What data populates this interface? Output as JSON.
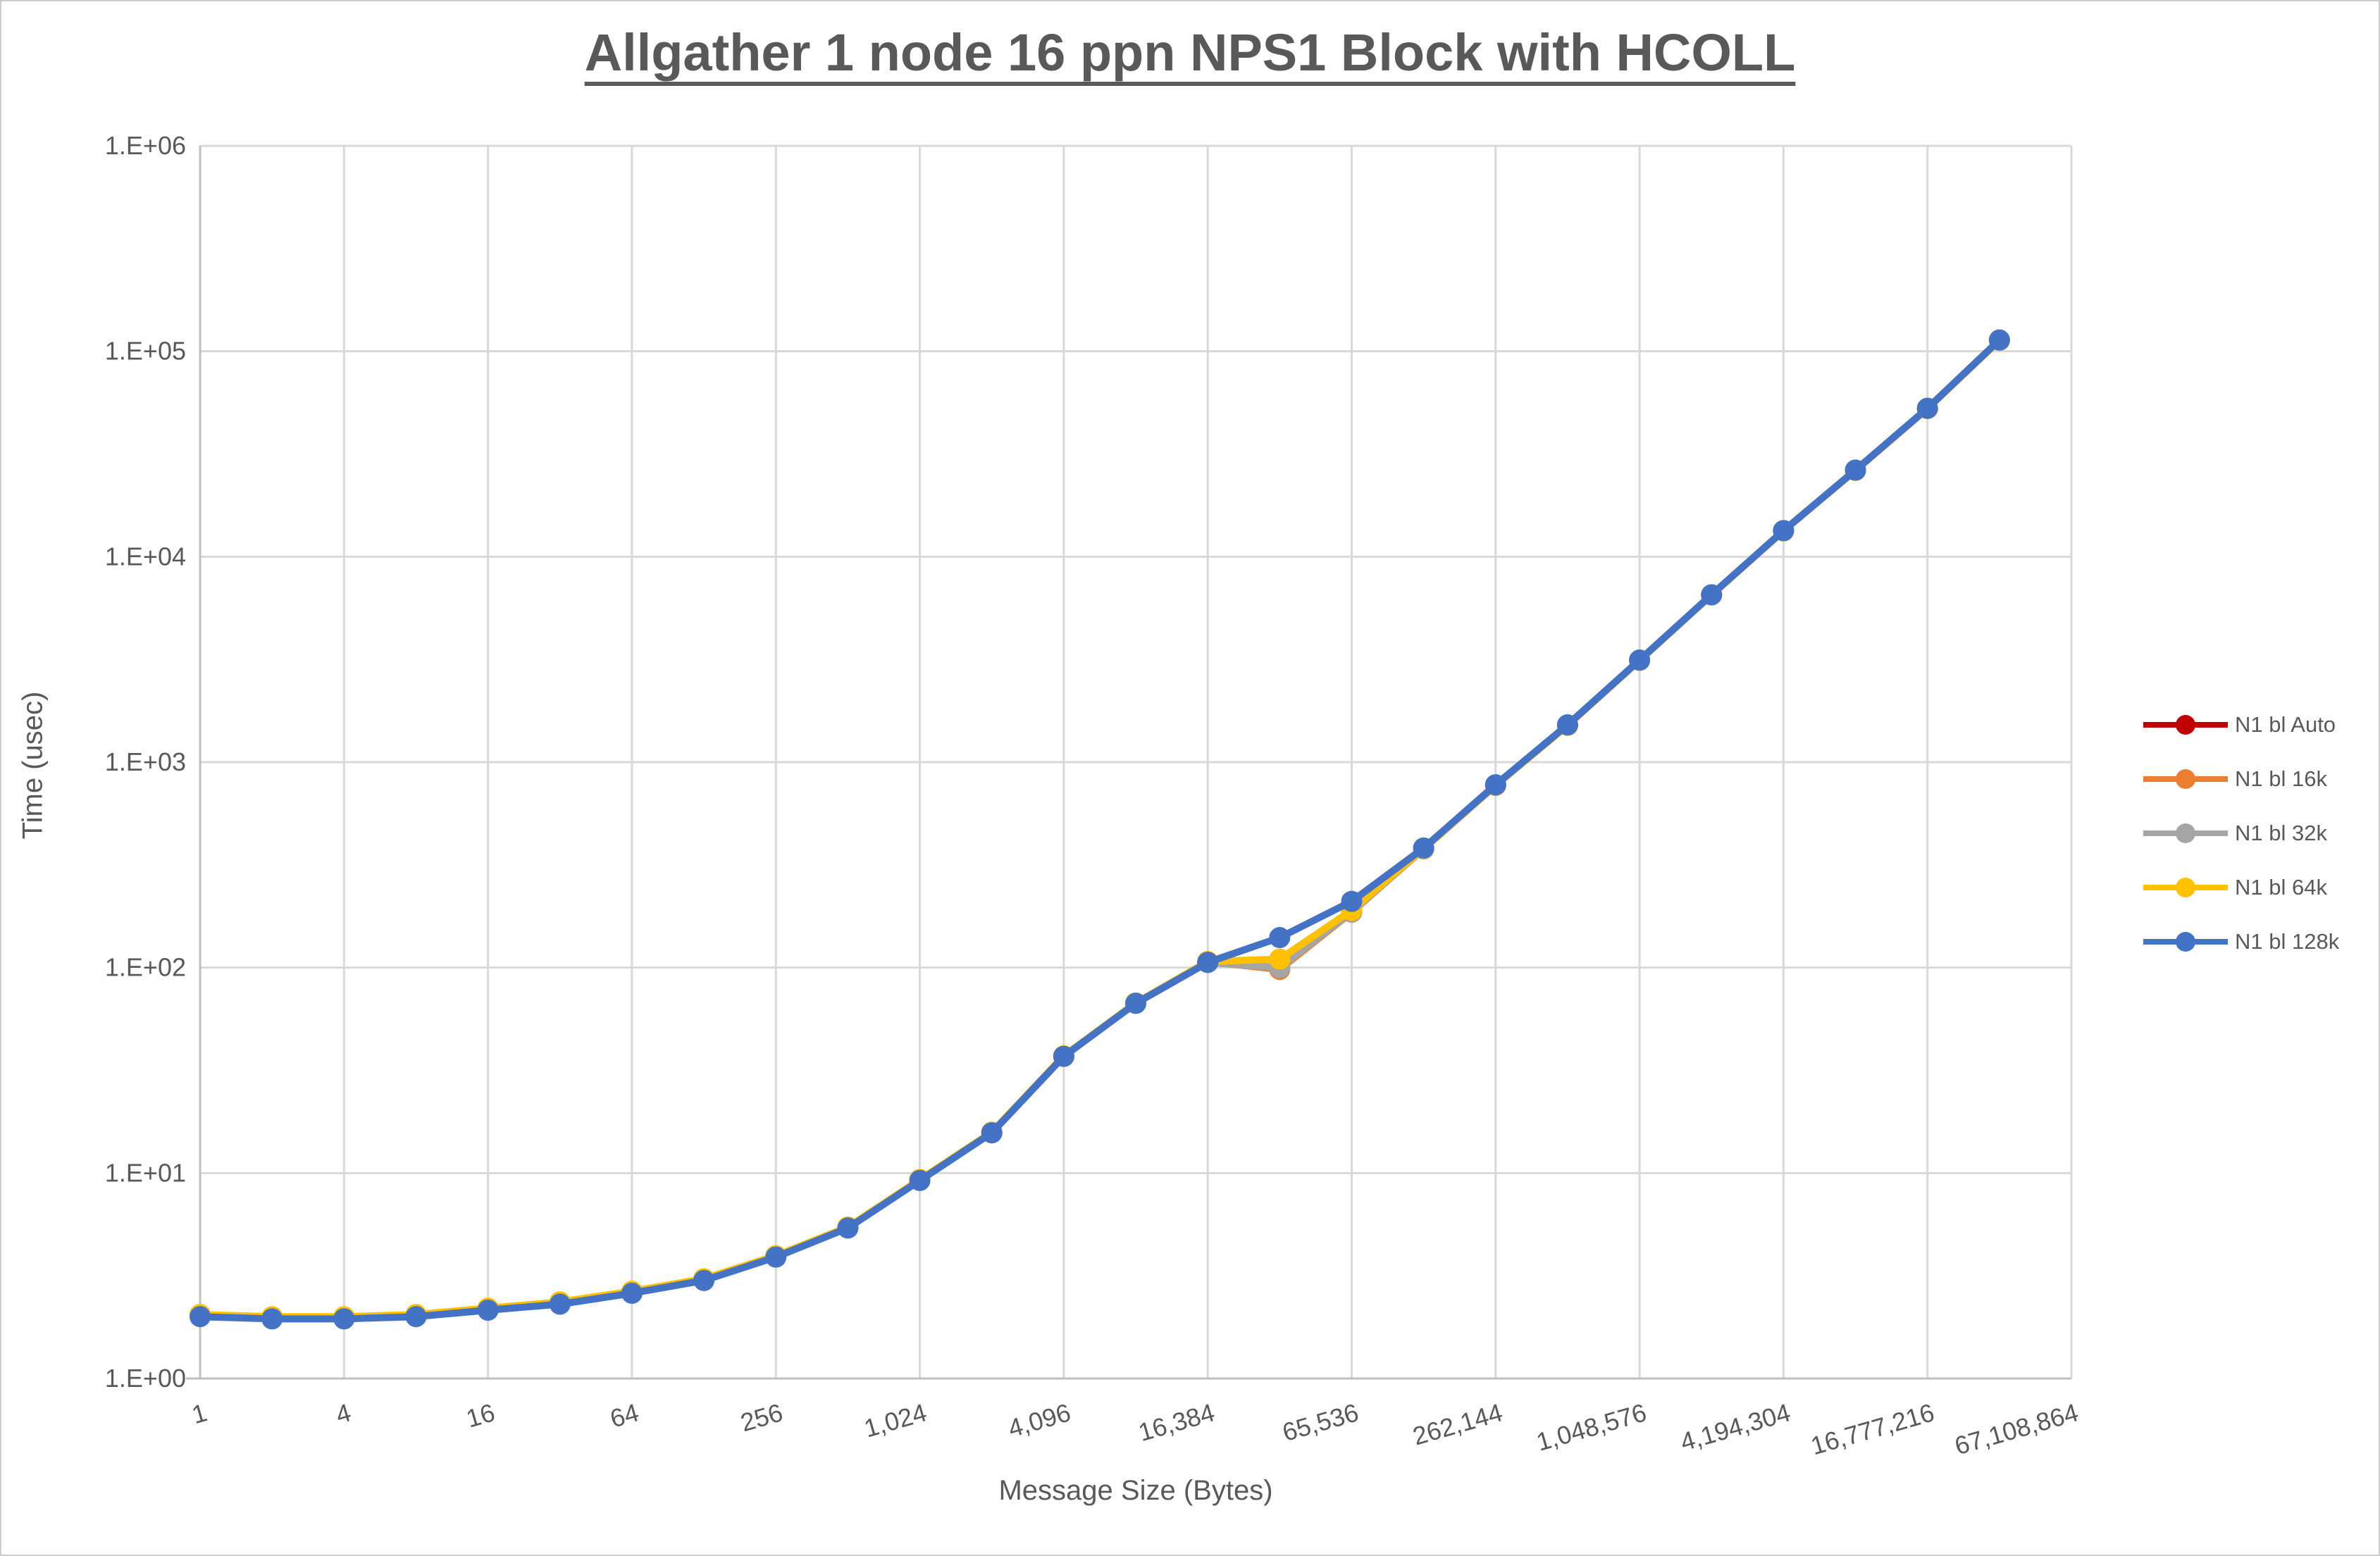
{
  "chart_data": {
    "type": "line",
    "title": "Allgather 1 node 16 ppn NPS1 Block with HCOLL",
    "xlabel": "Message Size (Bytes)",
    "ylabel": "Time (usec)",
    "x_scale": "log2-categories",
    "y_scale": "log10",
    "ylim": [
      1,
      1000000
    ],
    "grid": true,
    "legend_position": "right",
    "y_tick_labels": [
      "1.E+00",
      "1.E+01",
      "1.E+02",
      "1.E+03",
      "1.E+04",
      "1.E+05",
      "1.E+06"
    ],
    "x_tick_labels": [
      "1",
      "4",
      "16",
      "64",
      "256",
      "1,024",
      "4,096",
      "16,384",
      "65,536",
      "262,144",
      "1,048,576",
      "4,194,304",
      "16,777,216",
      "67,108,864"
    ],
    "x_axis_last_category": 67108864,
    "sizes": [
      1,
      2,
      4,
      8,
      16,
      32,
      64,
      128,
      256,
      512,
      1024,
      2048,
      4096,
      8192,
      16384,
      32768,
      65536,
      131072,
      262144,
      524288,
      1048576,
      2097152,
      4194304,
      8388608,
      16777216,
      33554432
    ],
    "series": [
      {
        "name": "N1 bl Auto",
        "color": "#C00000",
        "values": [
          2.02,
          1.97,
          1.97,
          2.02,
          2.17,
          2.32,
          2.62,
          3.02,
          3.92,
          5.42,
          9.24,
          15.7,
          37.0,
          67.1,
          106,
          100,
          188,
          380,
          772,
          1513,
          3132,
          6518,
          13370,
          26340,
          52680,
          113050
        ]
      },
      {
        "name": "N1 bl 16k",
        "color": "#ED7D31",
        "values": [
          2.04,
          1.99,
          1.99,
          2.04,
          2.19,
          2.34,
          2.64,
          3.04,
          3.94,
          5.44,
          9.28,
          15.8,
          37.1,
          67.2,
          107,
          98,
          186,
          378,
          770,
          1510,
          3128,
          6510,
          13360,
          26320,
          52600,
          113000
        ]
      },
      {
        "name": "N1 bl 32k",
        "color": "#A5A5A5",
        "values": [
          2.03,
          1.98,
          1.98,
          2.03,
          2.18,
          2.33,
          2.63,
          3.03,
          3.93,
          5.43,
          9.26,
          15.8,
          37.1,
          67.2,
          106,
          100,
          187,
          379,
          771,
          1512,
          3130,
          6515,
          13370,
          26330,
          52650,
          113100
        ]
      },
      {
        "name": "N1 bl 64k",
        "color": "#FFC000",
        "values": [
          2.05,
          2.0,
          2.0,
          2.05,
          2.2,
          2.36,
          2.66,
          3.06,
          3.96,
          5.46,
          9.3,
          15.8,
          37.2,
          67.3,
          107,
          110,
          190,
          380,
          772,
          1515,
          3135,
          6520,
          13380,
          26350,
          52700,
          113200
        ]
      },
      {
        "name": "N1 bl 128k",
        "color": "#4472C4",
        "values": [
          2.0,
          1.95,
          1.95,
          2.0,
          2.15,
          2.3,
          2.6,
          3.0,
          3.9,
          5.4,
          9.2,
          15.7,
          37.0,
          67.0,
          106,
          140,
          210,
          382,
          776,
          1520,
          3140,
          6530,
          13400,
          26400,
          52800,
          113500
        ]
      }
    ],
    "colors": {
      "tick_text": "#595959",
      "title_text": "#595959",
      "gridline": "#D9D9D9",
      "axis_line": "#BFBFBF"
    }
  }
}
